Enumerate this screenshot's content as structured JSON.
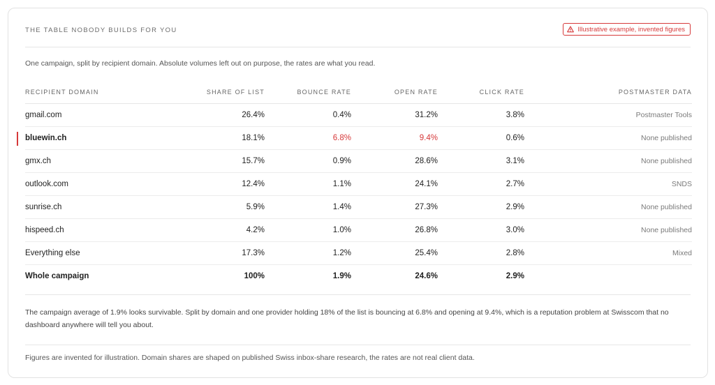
{
  "header": {
    "eyebrow": "THE TABLE NOBODY BUILDS FOR YOU",
    "badge": "Illustrative example, invented figures"
  },
  "intro": "One campaign, split by recipient domain. Absolute volumes left out on purpose, the rates are what you read.",
  "table": {
    "columns": [
      "RECIPIENT DOMAIN",
      "SHARE OF LIST",
      "BOUNCE RATE",
      "OPEN RATE",
      "CLICK RATE",
      "POSTMASTER DATA"
    ],
    "rows": [
      {
        "domain": "gmail.com",
        "share": "26.4%",
        "bounce": "0.4%",
        "open": "31.2%",
        "click": "3.8%",
        "postmaster": "Postmaster Tools"
      },
      {
        "domain": "bluewin.ch",
        "share": "18.1%",
        "bounce": "6.8%",
        "open": "9.4%",
        "click": "0.6%",
        "postmaster": "None published"
      },
      {
        "domain": "gmx.ch",
        "share": "15.7%",
        "bounce": "0.9%",
        "open": "28.6%",
        "click": "3.1%",
        "postmaster": "None published"
      },
      {
        "domain": "outlook.com",
        "share": "12.4%",
        "bounce": "1.1%",
        "open": "24.1%",
        "click": "2.7%",
        "postmaster": "SNDS"
      },
      {
        "domain": "sunrise.ch",
        "share": "5.9%",
        "bounce": "1.4%",
        "open": "27.3%",
        "click": "2.9%",
        "postmaster": "None published"
      },
      {
        "domain": "hispeed.ch",
        "share": "4.2%",
        "bounce": "1.0%",
        "open": "26.8%",
        "click": "3.0%",
        "postmaster": "None published"
      },
      {
        "domain": "Everything else",
        "share": "17.3%",
        "bounce": "1.2%",
        "open": "25.4%",
        "click": "2.8%",
        "postmaster": "Mixed"
      }
    ],
    "total": {
      "domain": "Whole campaign",
      "share": "100%",
      "bounce": "1.9%",
      "open": "24.6%",
      "click": "2.9%",
      "postmaster": ""
    }
  },
  "summary": "The campaign average of 1.9% looks survivable. Split by domain and one provider holding 18% of the list is bouncing at 6.8% and opening at 9.4%, which is a reputation problem at Swisscom that no dashboard anywhere will tell you about.",
  "footnote": "Figures are invented for illustration. Domain shares are shaped on published Swiss inbox-share research, the rates are not real client data.",
  "colors": {
    "accent": "#d6393a",
    "border": "#e2e2e2"
  },
  "icons": {
    "badge": "warning-triangle-icon"
  }
}
